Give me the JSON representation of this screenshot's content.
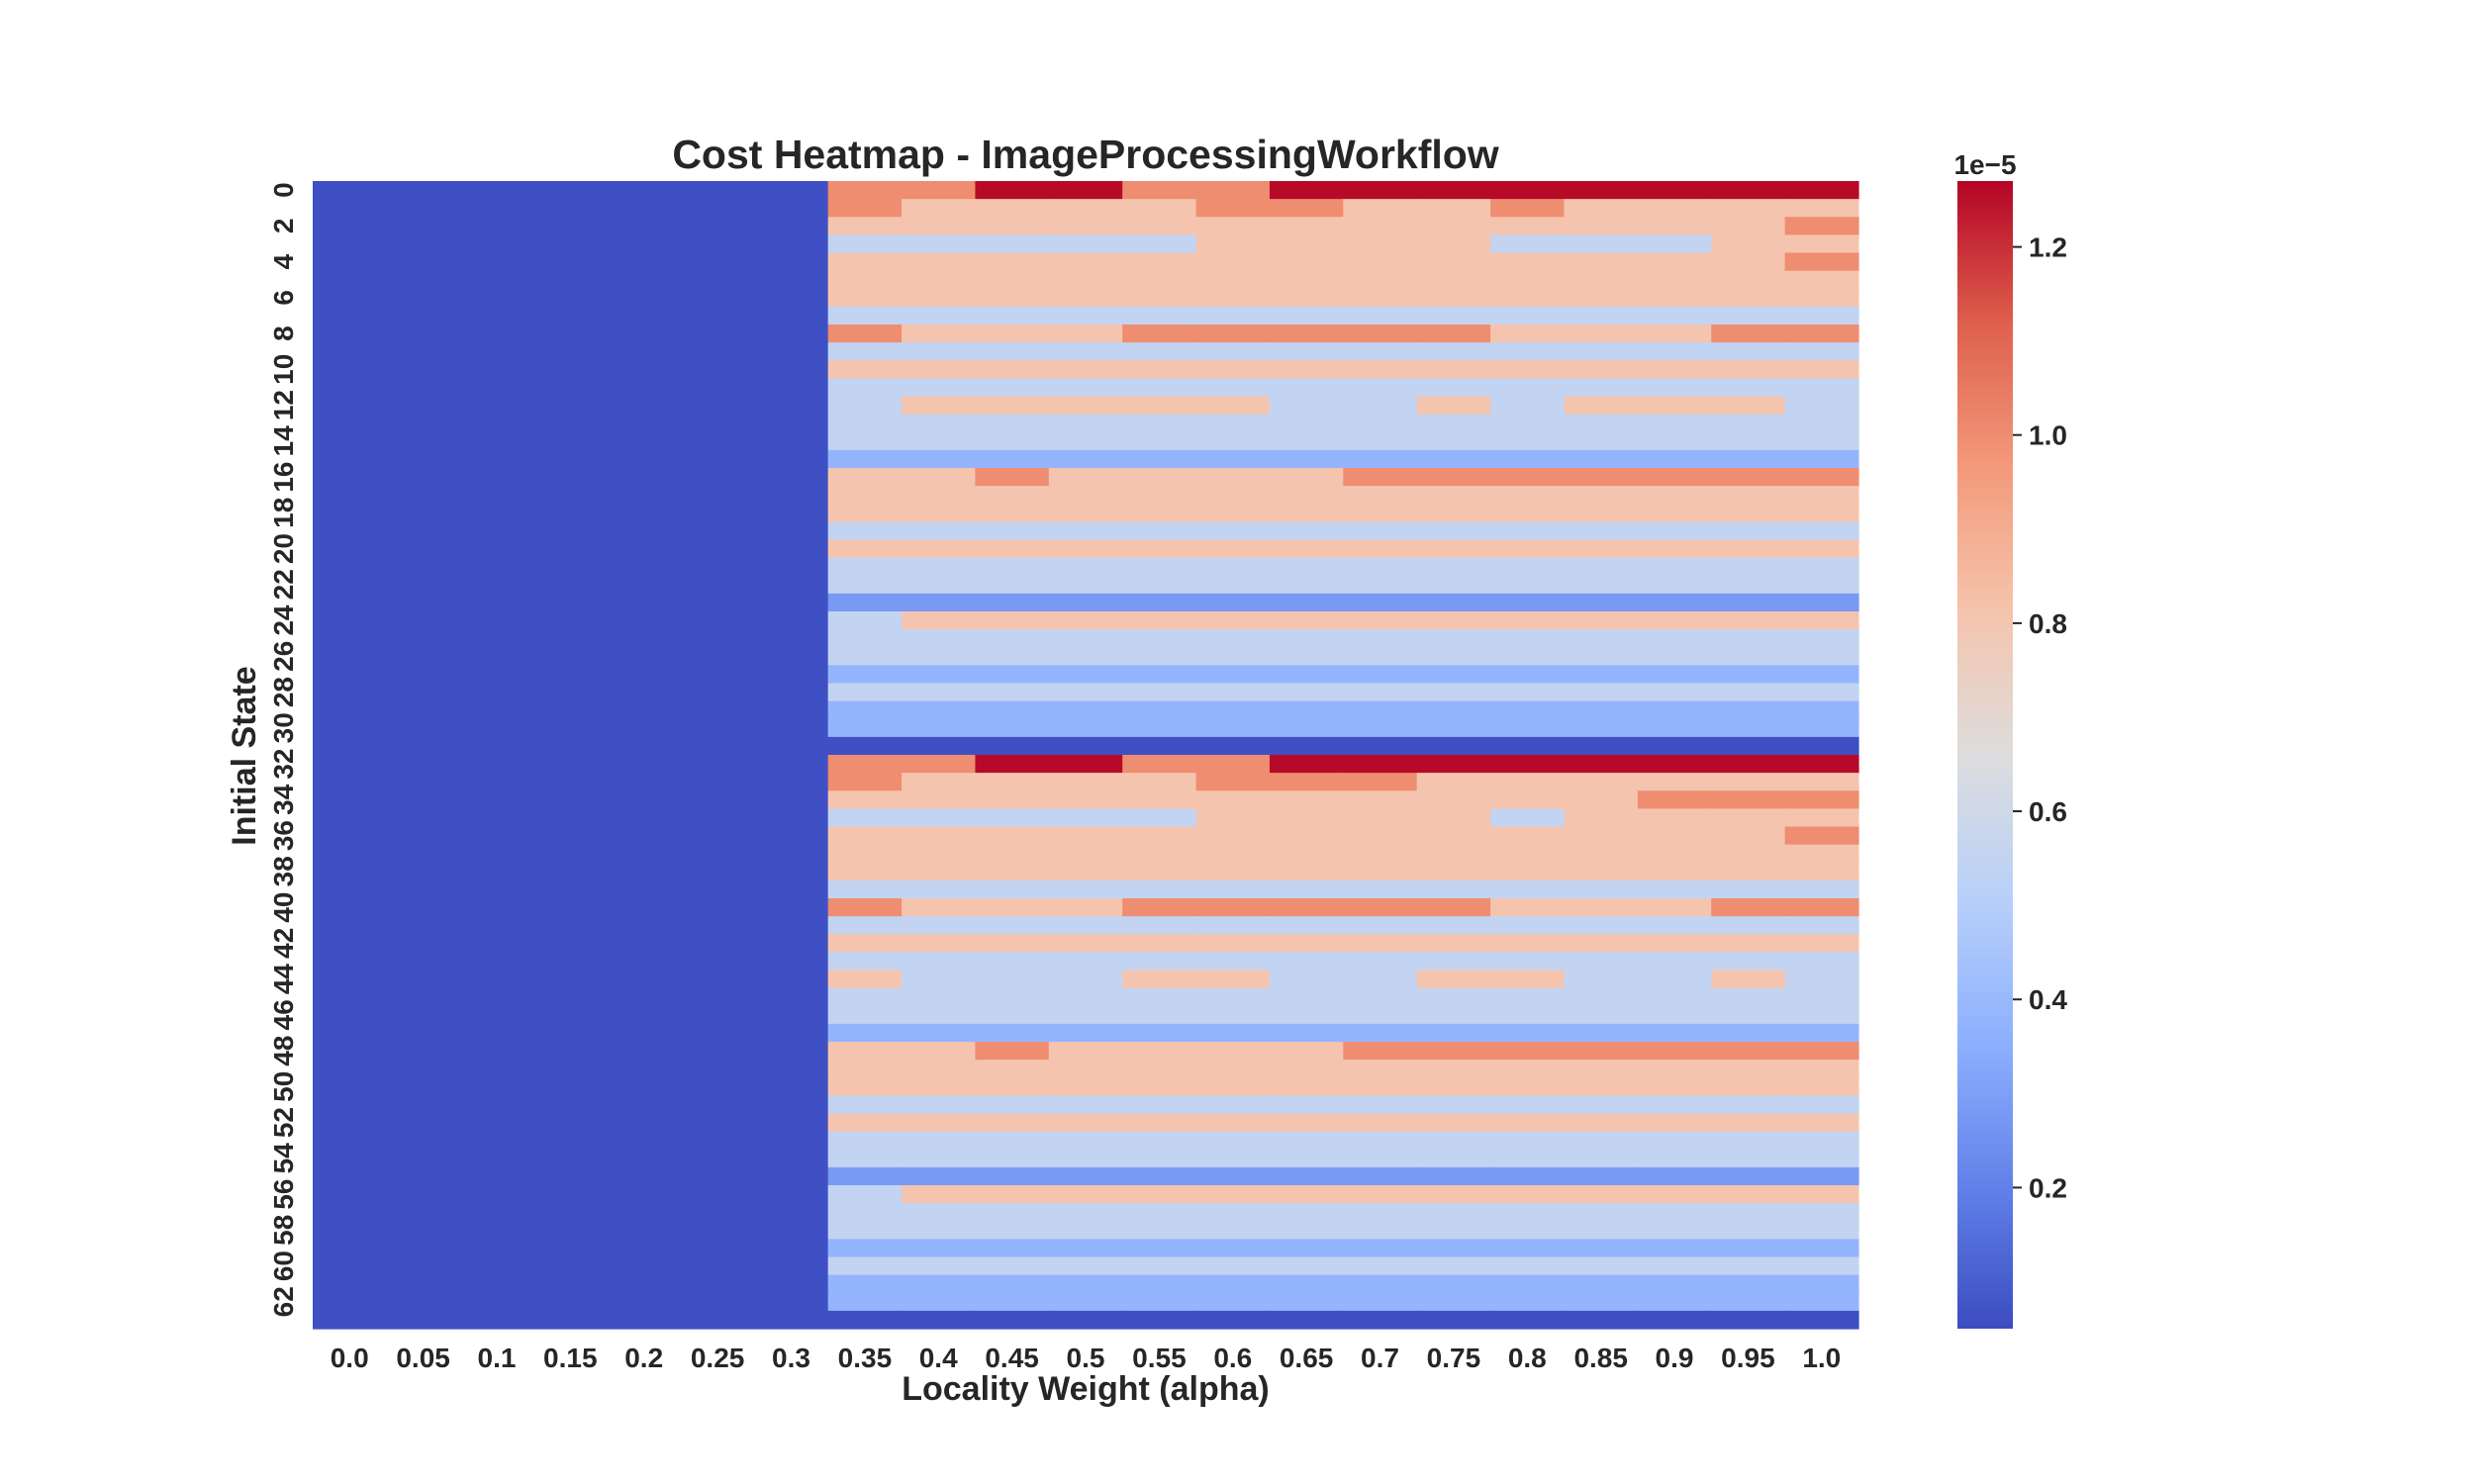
{
  "chart_data": {
    "type": "heatmap",
    "title": "Cost Heatmap - ImageProcessingWorkflow",
    "xlabel": "Locality Weight (alpha)",
    "ylabel": "Initial State",
    "x_tick_labels": [
      "0.0",
      "0.05",
      "0.1",
      "0.15",
      "0.2",
      "0.25",
      "0.3",
      "0.35",
      "0.4",
      "0.45",
      "0.5",
      "0.55",
      "0.6",
      "0.65",
      "0.7",
      "0.75",
      "0.8",
      "0.85",
      "0.9",
      "0.95",
      "1.0"
    ],
    "y_tick_labels": [
      "0",
      "2",
      "4",
      "6",
      "8",
      "10",
      "12",
      "14",
      "16",
      "18",
      "20",
      "22",
      "24",
      "26",
      "28",
      "30",
      "32",
      "34",
      "36",
      "38",
      "40",
      "42",
      "44",
      "46",
      "48",
      "50",
      "52",
      "54",
      "56",
      "58",
      "60",
      "62"
    ],
    "colormap": "coolwarm",
    "colorbar": {
      "min": 5e-07,
      "max": 1.27e-05,
      "exponent_label": "1e−5",
      "ticks": [
        0.2,
        0.4,
        0.6,
        0.8,
        1.0,
        1.2
      ],
      "tick_labels": [
        "0.2",
        "0.4",
        "0.6",
        "0.8",
        "1.0",
        "1.2"
      ],
      "scale": 1e-05
    },
    "value_levels_1e5": {
      "A": 0.06,
      "B": 0.28,
      "C": 0.38,
      "D": 0.55,
      "E": 0.81,
      "F": 1.0,
      "G": 1.26
    },
    "rows": [
      "AAAAAAAFFGGFFGGGGGGGG",
      "AAAAAAAFEEEEFFEEFEEEE",
      "AAAAAAAEEEEEEEEEEEEEF",
      "AAAAAAADDDDDEEEEDDDEE",
      "AAAAAAAEEEEEEEEEEEEEF",
      "AAAAAAAEEEEEEEEEEEEEE",
      "AAAAAAAEEEEEEEEEEEEEE",
      "AAAAAAADDDDDDDDDDDDDD",
      "AAAAAAAFEEEFFFFFEEEFF",
      "AAAAAAADDDDDDDDDDDDDD",
      "AAAAAAAEEEEEEEEEEEEEE",
      "AAAAAAADDDDDDDDDDDDDD",
      "AAAAAAADEEEEEDDEDEEED",
      "AAAAAAADDDDDDDDDDDDDD",
      "AAAAAAADDDDDDDDDDDDDD",
      "AAAAAAACCCCCCCCCCCCCC",
      "AAAAAAAEEFEEEEFFFFFFF",
      "AAAAAAAEEEEEEEEEEEEEE",
      "AAAAAAAEEEEEEEEEEEEEE",
      "AAAAAAADDDDDDDDDDDDDD",
      "AAAAAAAEEEEEEEEEEEEEE",
      "AAAAAAADDDDDDDDDDDDDD",
      "AAAAAAADDDDDDDDDDDDDD",
      "AAAAAAABBBBBBBBBBBBBB",
      "AAAAAAADEEEEEEEEEEEEE",
      "AAAAAAADDDDDDDDDDDDDD",
      "AAAAAAADDDDDDDDDDDDDD",
      "AAAAAAACCCCCCCCCCCCCC",
      "AAAAAAADDDDDDDDDDDDDD",
      "AAAAAAACCCCCCCCCCCCCC",
      "AAAAAAACCCCCCCCCCCCCC",
      "AAAAAAAAAAAAAAAAAAAAA",
      "AAAAAAAFFGGFFGGGGGGGG",
      "AAAAAAAFEEEEFFFEEEEEE",
      "AAAAAAAEEEEEEEEEEEFFF",
      "AAAAAAADDDDDEEEEDEEEE",
      "AAAAAAAEEEEEEEEEEEEEF",
      "AAAAAAAEEEEEEEEEEEEEE",
      "AAAAAAAEEEEEEEEEEEEEE",
      "AAAAAAADDDDDDDDDDDDDD",
      "AAAAAAAFEEEFFFFFEEEFF",
      "AAAAAAADDDDDDDDDDDDDD",
      "AAAAAAAEEEEEEEEEEEEEE",
      "AAAAAAADDDDDDDDDDDDDD",
      "AAAAAAAEDDDEEDDEEDDED",
      "AAAAAAADDDDDDDDDDDDDD",
      "AAAAAAADDDDDDDDDDDDDD",
      "AAAAAAACCCCCCCCCCCCCC",
      "AAAAAAAEEFEEEEFFFFFFF",
      "AAAAAAAEEEEEEEEEEEEEE",
      "AAAAAAAEEEEEEEEEEEEEE",
      "AAAAAAADDDDDDDDDDDDDD",
      "AAAAAAAEEEEEEEEEEEEEE",
      "AAAAAAADDDDDDDDDDDDDD",
      "AAAAAAADDDDDDDDDDDDDD",
      "AAAAAAABBBBBBBBBBBBBB",
      "AAAAAAADEEEEEEEEEEEEE",
      "AAAAAAADDDDDDDDDDDDDD",
      "AAAAAAADDDDDDDDDDDDDD",
      "AAAAAAACCCCCCCCCCCCCC",
      "AAAAAAADDDDDDDDDDDDDD",
      "AAAAAAACCCCCCCCCCCCCC",
      "AAAAAAACCCCCCCCCCCCCC",
      "AAAAAAAAAAAAAAAAAAAAA"
    ]
  }
}
